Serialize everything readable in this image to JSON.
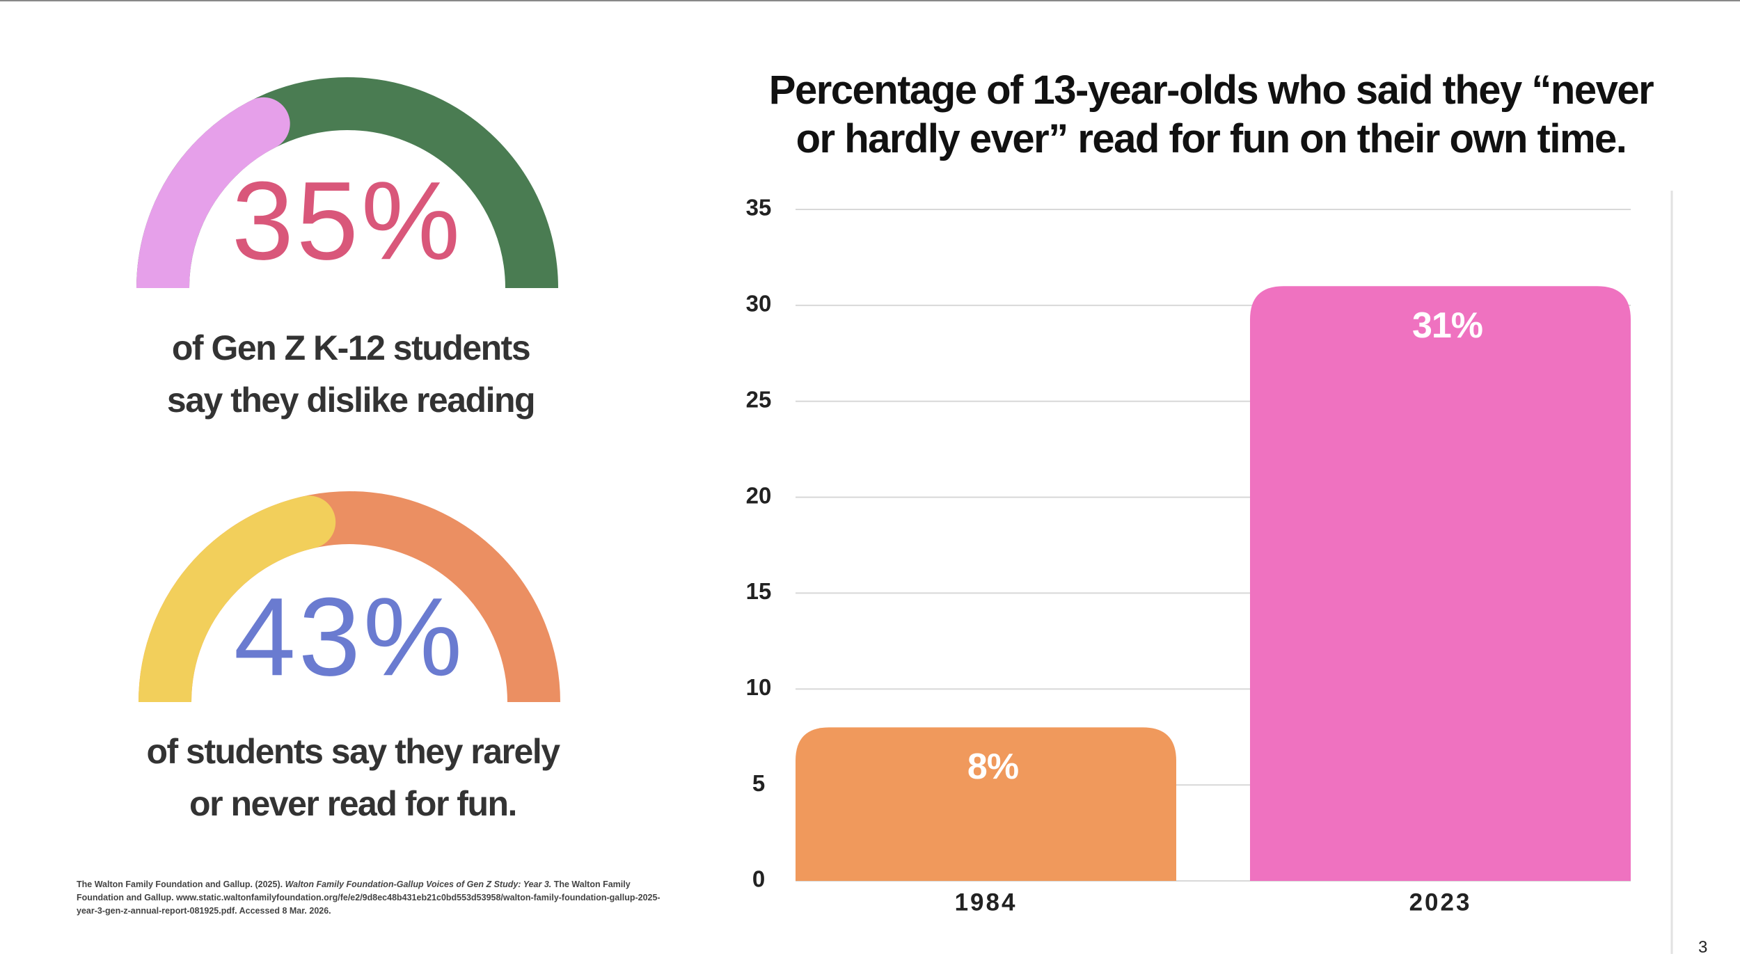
{
  "chart_data": [
    {
      "type": "gauge",
      "values": [
        35
      ],
      "value_labels": [
        "35%"
      ],
      "ylim": [
        0,
        100
      ],
      "colors": [
        "#e6a0ea",
        "#4a7c52"
      ],
      "label_color": "#d9577a",
      "caption": [
        "of Gen Z K-12 students",
        "say they dislike reading"
      ]
    },
    {
      "type": "gauge",
      "values": [
        43
      ],
      "value_labels": [
        "43%"
      ],
      "ylim": [
        0,
        100
      ],
      "colors": [
        "#f2cf5b",
        "#eb8f62"
      ],
      "label_color": "#6a7bd0",
      "caption": [
        "of students say they rarely",
        "or never read for fun."
      ]
    },
    {
      "type": "bar",
      "title": [
        "Percentage of 13-year-olds who said they “never",
        "or hardly ever” read for fun on their own time."
      ],
      "categories": [
        "1984",
        "2023"
      ],
      "values": [
        8,
        31
      ],
      "value_labels": [
        "8%",
        "31%"
      ],
      "colors": [
        "#f0995c",
        "#ef72c0"
      ],
      "ylim": [
        0,
        35
      ],
      "yticks": [
        0,
        5,
        10,
        15,
        20,
        25,
        30,
        35
      ],
      "grid": true
    }
  ],
  "footnote": [
    "The Walton Family Foundation and Gallup. (2025). ",
    "Walton Family Foundation-Gallup Voices of Gen Z Study: Year 3.",
    " The Walton Family Foundation and Gallup. ",
    "www.static.waltonfamilyfoundation.org/fe/e2/9d8ec48b431eb21c0bd553d53958/walton-family-foundation-gallup-2025-year-3-gen-z-annual-report-081925.pdf. Accessed 8 Mar. 2026."
  ],
  "page_number": "3"
}
